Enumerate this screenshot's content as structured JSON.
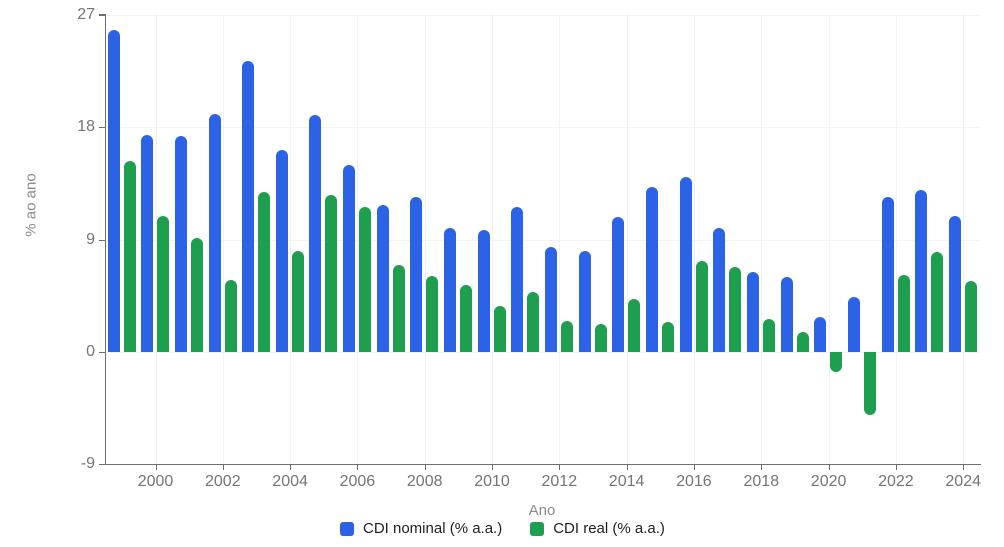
{
  "chart_data": {
    "type": "bar",
    "title": "",
    "xlabel": "Ano",
    "ylabel": "% ao ano",
    "x": [
      1999,
      2000,
      2001,
      2002,
      2003,
      2004,
      2005,
      2006,
      2007,
      2008,
      2009,
      2010,
      2011,
      2012,
      2013,
      2014,
      2015,
      2016,
      2017,
      2018,
      2019,
      2020,
      2021,
      2022,
      2023,
      2024
    ],
    "series": [
      {
        "name": "CDI nominal (% a.a.)",
        "color": "#2c63e6",
        "values": [
          25.8,
          17.4,
          17.3,
          19.1,
          23.3,
          16.2,
          19.0,
          15.0,
          11.8,
          12.4,
          9.9,
          9.8,
          11.6,
          8.4,
          8.1,
          10.8,
          13.2,
          14.0,
          9.9,
          6.4,
          6.0,
          2.8,
          4.4,
          12.4,
          13.0,
          10.9
        ]
      },
      {
        "name": "CDI real (% a.a.)",
        "color": "#1e9e4f",
        "values": [
          15.3,
          10.9,
          9.1,
          5.8,
          12.8,
          8.1,
          12.6,
          11.6,
          7.0,
          6.1,
          5.4,
          3.7,
          4.8,
          2.5,
          2.2,
          4.2,
          2.4,
          7.3,
          6.8,
          2.6,
          1.6,
          -1.6,
          -5.1,
          6.2,
          8.0,
          5.7
        ]
      }
    ],
    "ylim": [
      -9,
      27
    ],
    "yticks": [
      "27",
      "18",
      "9",
      "0",
      "-9"
    ],
    "ytick_values": [
      27,
      18,
      9,
      0,
      -9
    ],
    "xticks": [
      "2000",
      "2002",
      "2004",
      "2006",
      "2008",
      "2010",
      "2012",
      "2014",
      "2016",
      "2018",
      "2020",
      "2022",
      "2024"
    ],
    "xtick_values": [
      2000,
      2002,
      2004,
      2006,
      2008,
      2010,
      2012,
      2014,
      2016,
      2018,
      2020,
      2022,
      2024
    ],
    "grid": "faint vertical lines at x ticks, faint horizontal lines at y ticks",
    "legend_position": "bottom"
  },
  "colors": {
    "background": "#ffffff",
    "nominal_blue": "#2c63e6",
    "real_green": "#1e9e4f",
    "axis": "#6e6e6e",
    "tick_label": "#757575",
    "grid": "#f2f2f2",
    "legend_text": "#1f1f1f"
  }
}
